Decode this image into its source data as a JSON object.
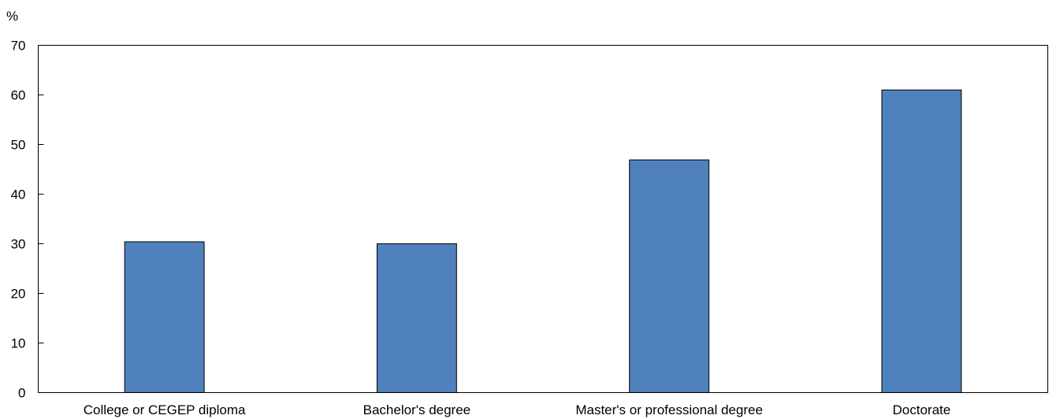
{
  "chart_data": {
    "type": "bar",
    "title": "",
    "ylabel": "%",
    "xlabel": "",
    "ylim": [
      0,
      70
    ],
    "yticks": [
      0,
      10,
      20,
      30,
      40,
      50,
      60,
      70
    ],
    "ytick_labels": [
      "0",
      "10",
      "20",
      "30",
      "40",
      "50",
      "60",
      "70"
    ],
    "categories": [
      "College or CEGEP diploma",
      "Bachelor's degree",
      "Master's or professional degree",
      "Doctorate"
    ],
    "values": [
      30.4,
      30.0,
      46.9,
      61.0
    ],
    "grid": false,
    "legend": "none",
    "bar_color": "#4f81bd",
    "bar_edge_color": "#000000"
  }
}
